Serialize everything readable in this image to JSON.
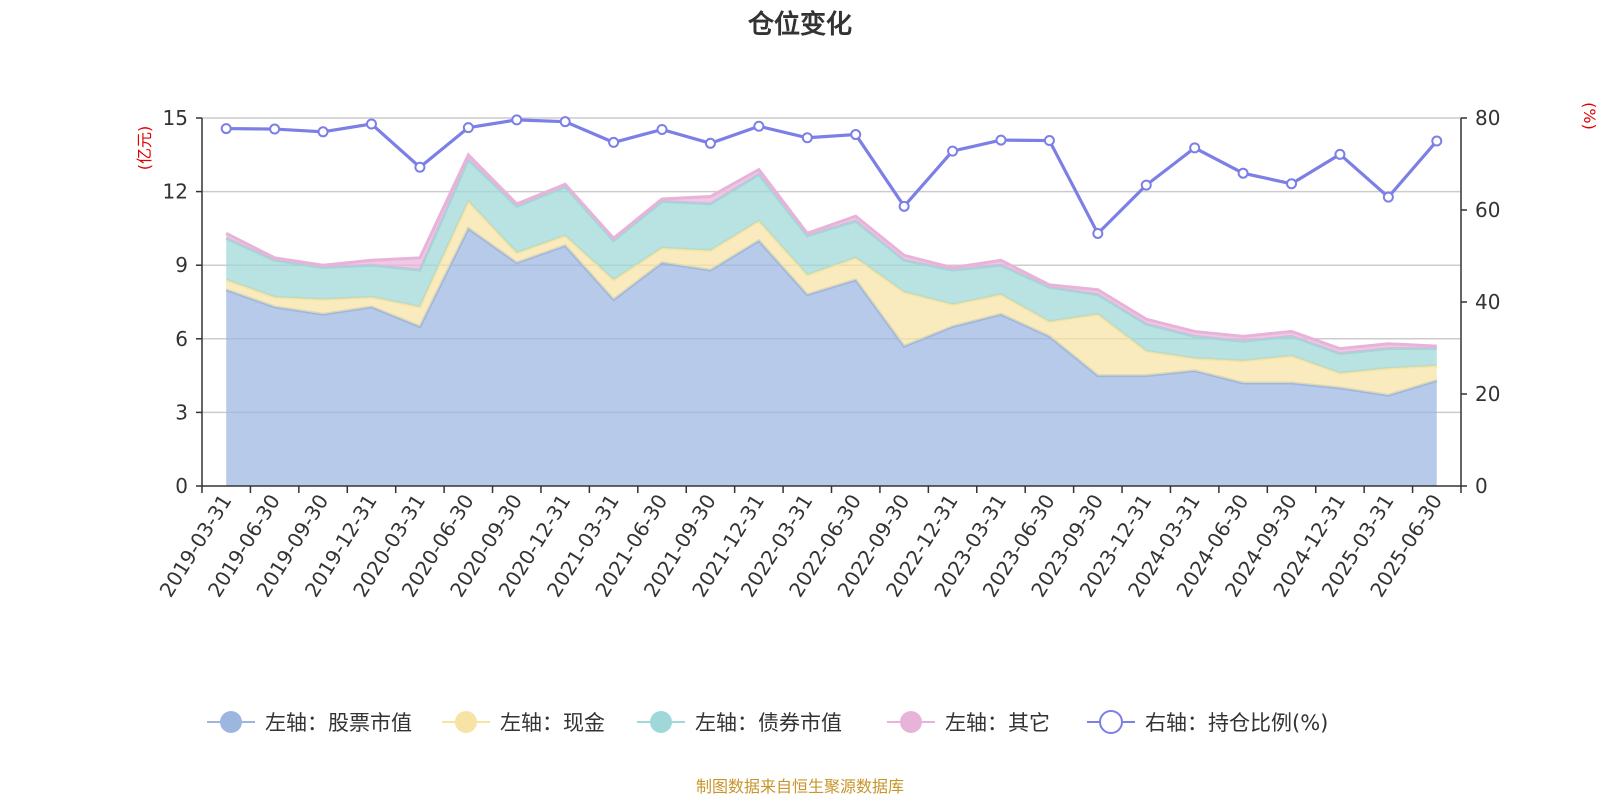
{
  "chart_data": {
    "type": "area",
    "title": "仓位变化",
    "left_axis_unit": "(亿元)",
    "right_axis_unit": "(%)",
    "ylim_left": [
      0,
      15
    ],
    "yticks_left": [
      0,
      3,
      6,
      9,
      12,
      15
    ],
    "ylim_right": [
      0,
      80
    ],
    "yticks_right": [
      0,
      20,
      40,
      60,
      80
    ],
    "grid": true,
    "legend_position": "bottom",
    "categories": [
      "2019-03-31",
      "2019-06-30",
      "2019-09-30",
      "2019-12-31",
      "2020-03-31",
      "2020-06-30",
      "2020-09-30",
      "2020-12-31",
      "2021-03-31",
      "2021-06-30",
      "2021-09-30",
      "2021-12-31",
      "2022-03-31",
      "2022-06-30",
      "2022-09-30",
      "2022-12-31",
      "2023-03-31",
      "2023-06-30",
      "2023-09-30",
      "2023-12-31",
      "2024-03-31",
      "2024-06-30",
      "2024-09-30",
      "2024-12-31",
      "2025-03-31",
      "2025-06-30"
    ],
    "stacked_series": [
      {
        "name": "左轴：股票市值",
        "axis": "left",
        "color": "#9db6e0",
        "values": [
          8.0,
          7.3,
          7.0,
          7.3,
          6.5,
          10.5,
          9.1,
          9.8,
          7.6,
          9.1,
          8.8,
          10.0,
          7.8,
          8.4,
          5.7,
          6.5,
          7.0,
          6.1,
          4.5,
          4.5,
          4.7,
          4.2,
          4.2,
          4.0,
          3.7,
          4.3
        ]
      },
      {
        "name": "左轴：现金",
        "axis": "left",
        "color": "#f7e3a3",
        "values": [
          0.4,
          0.4,
          0.6,
          0.4,
          0.8,
          1.1,
          0.4,
          0.4,
          0.8,
          0.6,
          0.8,
          0.8,
          0.8,
          0.9,
          2.2,
          0.9,
          0.8,
          0.6,
          2.5,
          1.0,
          0.5,
          0.9,
          1.1,
          0.6,
          1.1,
          0.6
        ]
      },
      {
        "name": "左轴：债券市值",
        "axis": "left",
        "color": "#9ed8d8",
        "values": [
          1.7,
          1.5,
          1.3,
          1.3,
          1.5,
          1.7,
          1.9,
          2.0,
          1.6,
          1.9,
          1.9,
          1.9,
          1.6,
          1.5,
          1.3,
          1.4,
          1.2,
          1.4,
          0.8,
          1.1,
          0.9,
          0.8,
          0.8,
          0.8,
          0.8,
          0.7
        ]
      },
      {
        "name": "左轴：其它",
        "axis": "left",
        "color": "#e8b3d9",
        "values": [
          0.2,
          0.1,
          0.1,
          0.2,
          0.5,
          0.2,
          0.1,
          0.1,
          0.1,
          0.1,
          0.3,
          0.2,
          0.1,
          0.2,
          0.2,
          0.1,
          0.2,
          0.1,
          0.2,
          0.2,
          0.2,
          0.2,
          0.2,
          0.2,
          0.2,
          0.1
        ]
      }
    ],
    "line_series": {
      "name": "右轴：持仓比例(%)",
      "axis": "right",
      "color": "#7b7fe6",
      "values": [
        77.7,
        77.6,
        77.0,
        78.7,
        69.3,
        77.9,
        79.6,
        79.2,
        74.7,
        77.5,
        74.5,
        78.2,
        75.7,
        76.4,
        60.8,
        72.8,
        75.2,
        75.1,
        54.9,
        65.4,
        73.5,
        68.0,
        65.7,
        72.1,
        62.8,
        75.0
      ]
    }
  },
  "footer": {
    "text": "制图数据来自恒生聚源数据库"
  }
}
